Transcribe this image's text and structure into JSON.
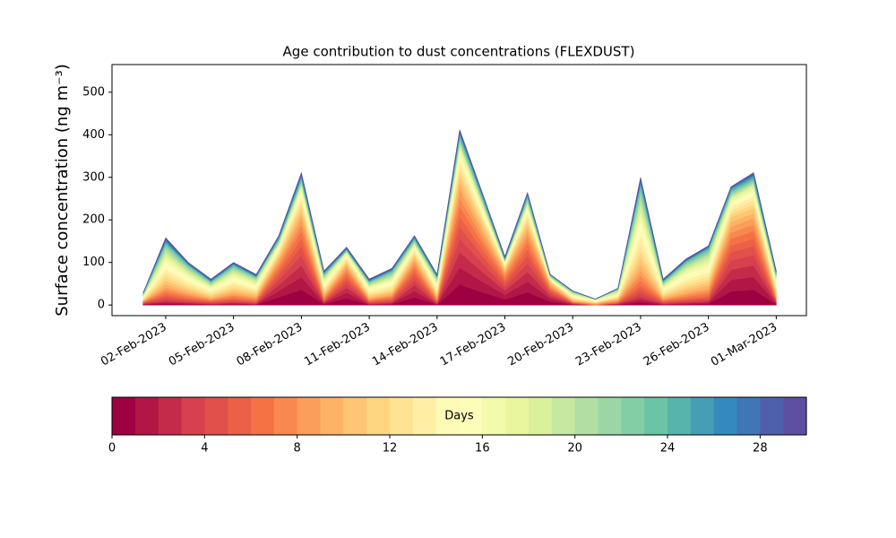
{
  "chart_data": {
    "type": "stacked-area",
    "title": "Age contribution to dust concentrations (FLEXDUST)",
    "ylabel": "Surface concentration (ng m⁻³)",
    "x": [
      "2023-02-01",
      "2023-02-02",
      "2023-02-03",
      "2023-02-04",
      "2023-02-05",
      "2023-02-06",
      "2023-02-07",
      "2023-02-08",
      "2023-02-09",
      "2023-02-10",
      "2023-02-11",
      "2023-02-12",
      "2023-02-13",
      "2023-02-14",
      "2023-02-15",
      "2023-02-16",
      "2023-02-17",
      "2023-02-18",
      "2023-02-19",
      "2023-02-20",
      "2023-02-21",
      "2023-02-22",
      "2023-02-23",
      "2023-02-24",
      "2023-02-25",
      "2023-02-26",
      "2023-02-27",
      "2023-02-28",
      "2023-03-01"
    ],
    "xlim": [
      "2023-01-30T15:00",
      "2023-03-02T08:00"
    ],
    "xticks": [
      {
        "value": "2023-02-02",
        "label": "02-Feb-2023"
      },
      {
        "value": "2023-02-05",
        "label": "05-Feb-2023"
      },
      {
        "value": "2023-02-08",
        "label": "08-Feb-2023"
      },
      {
        "value": "2023-02-11",
        "label": "11-Feb-2023"
      },
      {
        "value": "2023-02-14",
        "label": "14-Feb-2023"
      },
      {
        "value": "2023-02-17",
        "label": "17-Feb-2023"
      },
      {
        "value": "2023-02-20",
        "label": "20-Feb-2023"
      },
      {
        "value": "2023-02-23",
        "label": "23-Feb-2023"
      },
      {
        "value": "2023-02-26",
        "label": "26-Feb-2023"
      },
      {
        "value": "2023-03-01",
        "label": "01-Mar-2023"
      }
    ],
    "ylim": [
      -25,
      565
    ],
    "yticks": [
      0,
      100,
      200,
      300,
      400,
      500
    ],
    "series": [
      {
        "color": "#9e0142",
        "values": [
          1,
          3,
          2,
          1,
          2,
          1,
          18,
          36,
          2,
          16,
          1,
          2,
          18,
          1,
          48,
          30,
          13,
          30,
          8,
          1,
          0,
          1,
          6,
          1,
          2,
          3,
          32,
          36,
          2
        ]
      },
      {
        "color": "#b11646",
        "values": [
          1,
          3,
          2,
          1,
          2,
          1,
          15,
          30,
          2,
          13,
          1,
          2,
          15,
          1,
          40,
          25,
          11,
          25,
          7,
          1,
          0,
          1,
          6,
          1,
          2,
          3,
          27,
          30,
          2
        ]
      },
      {
        "color": "#c42b4b",
        "values": [
          1,
          3,
          2,
          1,
          2,
          1,
          14,
          27,
          2,
          12,
          1,
          2,
          14,
          1,
          36,
          23,
          10,
          23,
          6,
          1,
          0,
          1,
          6,
          1,
          2,
          3,
          24,
          27,
          2
        ]
      },
      {
        "color": "#d6404f",
        "values": [
          1,
          5,
          3,
          2,
          3,
          2,
          12,
          24,
          2,
          10,
          2,
          3,
          12,
          2,
          32,
          20,
          9,
          20,
          6,
          1,
          0,
          1,
          9,
          2,
          3,
          4,
          22,
          24,
          2
        ]
      },
      {
        "color": "#e1504a",
        "values": [
          1,
          5,
          3,
          2,
          3,
          2,
          11,
          21,
          2,
          9,
          2,
          3,
          11,
          2,
          28,
          18,
          8,
          18,
          5,
          1,
          0,
          1,
          9,
          2,
          3,
          4,
          19,
          21,
          2
        ]
      },
      {
        "color": "#eb6046",
        "values": [
          1,
          5,
          3,
          2,
          3,
          2,
          9,
          18,
          2,
          8,
          2,
          3,
          9,
          2,
          24,
          15,
          7,
          15,
          4,
          1,
          0,
          1,
          9,
          2,
          3,
          4,
          16,
          18,
          2
        ]
      },
      {
        "color": "#f57245",
        "values": [
          1,
          6,
          4,
          2,
          4,
          3,
          9,
          18,
          3,
          8,
          2,
          3,
          9,
          3,
          24,
          15,
          7,
          15,
          4,
          1,
          1,
          2,
          12,
          2,
          4,
          6,
          16,
          18,
          3
        ]
      },
      {
        "color": "#f8884f",
        "values": [
          1,
          6,
          4,
          2,
          4,
          3,
          8,
          15,
          3,
          7,
          2,
          3,
          8,
          3,
          20,
          13,
          6,
          13,
          4,
          1,
          1,
          2,
          12,
          2,
          4,
          6,
          14,
          15,
          3
        ]
      },
      {
        "color": "#fb9e5a",
        "values": [
          1,
          6,
          4,
          2,
          4,
          3,
          8,
          15,
          3,
          7,
          2,
          3,
          8,
          3,
          20,
          13,
          6,
          13,
          4,
          1,
          1,
          2,
          12,
          2,
          4,
          6,
          14,
          15,
          3
        ]
      },
      {
        "color": "#fdb365",
        "values": [
          1,
          8,
          5,
          3,
          5,
          4,
          6,
          12,
          4,
          5,
          3,
          4,
          6,
          4,
          16,
          10,
          4,
          10,
          3,
          2,
          1,
          2,
          15,
          3,
          6,
          7,
          11,
          12,
          4
        ]
      },
      {
        "color": "#fdc574",
        "values": [
          1,
          8,
          5,
          3,
          5,
          4,
          6,
          12,
          4,
          5,
          3,
          4,
          6,
          4,
          16,
          10,
          4,
          10,
          3,
          2,
          1,
          2,
          15,
          3,
          6,
          7,
          11,
          12,
          4
        ]
      },
      {
        "color": "#fed682",
        "values": [
          1,
          8,
          5,
          3,
          5,
          4,
          5,
          9,
          4,
          4,
          3,
          4,
          5,
          4,
          12,
          8,
          3,
          8,
          2,
          2,
          1,
          2,
          15,
          3,
          6,
          7,
          8,
          9,
          4
        ]
      },
      {
        "color": "#fee492",
        "values": [
          2,
          9,
          6,
          4,
          6,
          4,
          5,
          9,
          5,
          4,
          4,
          5,
          5,
          4,
          12,
          8,
          3,
          8,
          2,
          2,
          1,
          2,
          18,
          4,
          7,
          8,
          8,
          9,
          5
        ]
      },
      {
        "color": "#feefa5",
        "values": [
          2,
          9,
          6,
          4,
          6,
          4,
          5,
          9,
          5,
          4,
          4,
          5,
          5,
          4,
          12,
          8,
          3,
          8,
          2,
          2,
          1,
          2,
          18,
          4,
          7,
          8,
          8,
          9,
          5
        ]
      },
      {
        "color": "#fffab6",
        "values": [
          2,
          9,
          6,
          4,
          6,
          4,
          3,
          6,
          5,
          3,
          4,
          5,
          3,
          4,
          8,
          5,
          2,
          5,
          1,
          2,
          1,
          2,
          18,
          4,
          7,
          8,
          5,
          6,
          5
        ]
      },
      {
        "color": "#fbfdb9",
        "values": [
          1,
          8,
          5,
          3,
          5,
          4,
          3,
          6,
          4,
          3,
          3,
          4,
          3,
          4,
          8,
          5,
          2,
          5,
          1,
          2,
          1,
          2,
          15,
          3,
          6,
          7,
          5,
          6,
          4
        ]
      },
      {
        "color": "#f2faab",
        "values": [
          1,
          8,
          5,
          3,
          5,
          4,
          3,
          6,
          4,
          3,
          3,
          4,
          3,
          4,
          8,
          5,
          2,
          5,
          1,
          2,
          1,
          2,
          15,
          3,
          6,
          7,
          5,
          6,
          4
        ]
      },
      {
        "color": "#e9f69d",
        "values": [
          1,
          6,
          4,
          2,
          4,
          3,
          3,
          6,
          3,
          3,
          2,
          3,
          3,
          3,
          8,
          5,
          2,
          5,
          1,
          1,
          1,
          2,
          12,
          2,
          4,
          6,
          5,
          6,
          3
        ]
      },
      {
        "color": "#daf09b",
        "values": [
          1,
          6,
          4,
          2,
          4,
          3,
          2,
          3,
          3,
          1,
          2,
          3,
          2,
          3,
          4,
          3,
          1,
          3,
          1,
          1,
          1,
          2,
          12,
          2,
          4,
          6,
          3,
          3,
          3
        ]
      },
      {
        "color": "#c6e89f",
        "values": [
          1,
          6,
          4,
          2,
          4,
          3,
          2,
          3,
          3,
          1,
          2,
          3,
          2,
          3,
          4,
          3,
          1,
          3,
          1,
          1,
          1,
          2,
          12,
          2,
          4,
          6,
          3,
          3,
          3
        ]
      },
      {
        "color": "#b1dfa3",
        "values": [
          1,
          5,
          3,
          2,
          3,
          2,
          2,
          3,
          2,
          1,
          2,
          3,
          2,
          2,
          4,
          3,
          1,
          3,
          1,
          1,
          0,
          1,
          9,
          2,
          3,
          4,
          3,
          3,
          2
        ]
      },
      {
        "color": "#9ad7a4",
        "values": [
          1,
          5,
          3,
          2,
          3,
          2,
          2,
          3,
          2,
          1,
          2,
          3,
          2,
          2,
          4,
          3,
          1,
          3,
          1,
          1,
          0,
          1,
          9,
          2,
          3,
          4,
          3,
          3,
          2
        ]
      },
      {
        "color": "#83cea4",
        "values": [
          1,
          5,
          3,
          2,
          3,
          2,
          2,
          3,
          2,
          1,
          2,
          3,
          2,
          2,
          4,
          3,
          1,
          3,
          1,
          1,
          0,
          1,
          9,
          2,
          3,
          4,
          3,
          3,
          2
        ]
      },
      {
        "color": "#6bc4a5",
        "values": [
          1,
          3,
          2,
          1,
          2,
          1,
          2,
          3,
          2,
          1,
          1,
          2,
          2,
          1,
          4,
          3,
          1,
          3,
          1,
          1,
          0,
          1,
          6,
          1,
          2,
          3,
          3,
          3,
          2
        ]
      },
      {
        "color": "#57b4ac",
        "values": [
          1,
          3,
          2,
          1,
          2,
          1,
          2,
          3,
          2,
          1,
          1,
          2,
          2,
          1,
          4,
          3,
          1,
          3,
          1,
          1,
          0,
          1,
          6,
          1,
          2,
          3,
          3,
          3,
          2
        ]
      },
      {
        "color": "#469db6",
        "values": [
          0,
          2,
          1,
          1,
          1,
          1,
          2,
          3,
          1,
          1,
          1,
          1,
          2,
          1,
          4,
          3,
          1,
          3,
          1,
          0,
          0,
          0,
          3,
          1,
          1,
          1,
          3,
          3,
          1
        ]
      },
      {
        "color": "#348abc",
        "values": [
          0,
          2,
          1,
          1,
          1,
          1,
          1,
          2,
          1,
          1,
          1,
          1,
          1,
          1,
          2,
          1,
          1,
          1,
          0,
          0,
          0,
          0,
          3,
          1,
          1,
          1,
          1,
          2,
          1
        ]
      },
      {
        "color": "#4076b4",
        "values": [
          0,
          2,
          1,
          1,
          1,
          1,
          1,
          2,
          1,
          1,
          1,
          1,
          1,
          1,
          2,
          1,
          1,
          1,
          0,
          0,
          0,
          0,
          3,
          1,
          1,
          1,
          1,
          2,
          1
        ]
      },
      {
        "color": "#4f60aa",
        "values": [
          0,
          2,
          1,
          1,
          1,
          1,
          1,
          2,
          1,
          1,
          1,
          1,
          1,
          1,
          2,
          1,
          1,
          1,
          0,
          0,
          0,
          0,
          3,
          1,
          1,
          1,
          1,
          2,
          1
        ]
      },
      {
        "color": "#5e4fa2",
        "values": [
          0,
          2,
          1,
          1,
          1,
          1,
          1,
          2,
          1,
          1,
          1,
          1,
          1,
          1,
          2,
          1,
          1,
          1,
          0,
          0,
          0,
          0,
          3,
          1,
          1,
          1,
          1,
          2,
          1
        ]
      }
    ],
    "colorbar": {
      "label": "Days",
      "lim": [
        0,
        30
      ],
      "ticks": [
        0,
        4,
        8,
        12,
        16,
        20,
        24,
        28
      ]
    }
  }
}
